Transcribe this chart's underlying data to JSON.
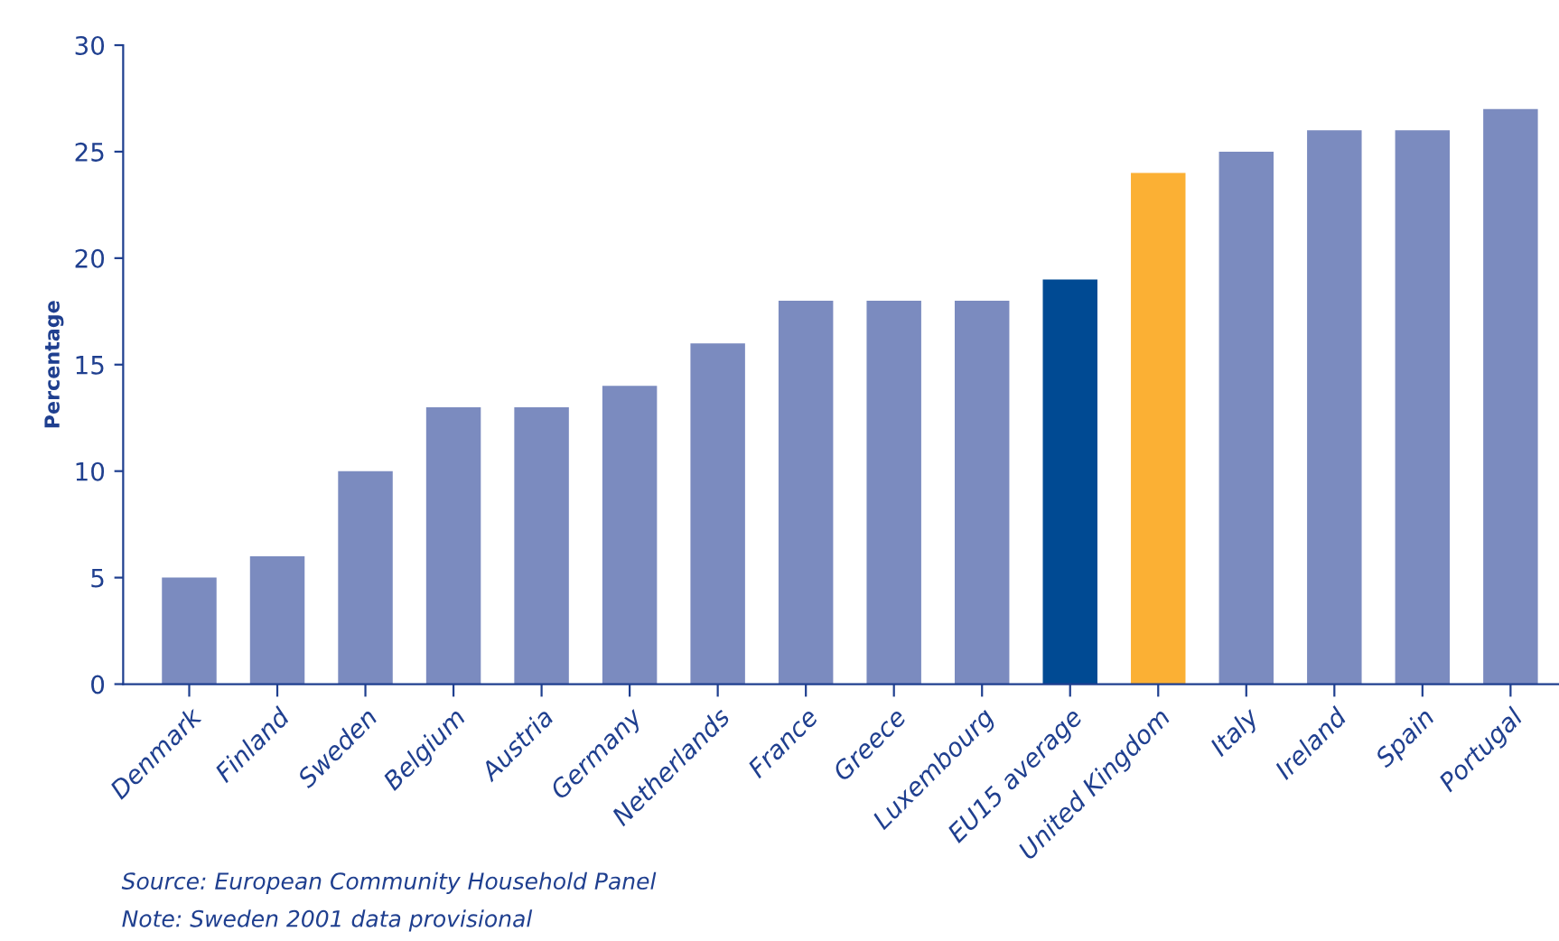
{
  "chart_data": {
    "type": "bar",
    "ylabel": "Percentage",
    "categories": [
      "Denmark",
      "Finland",
      "Sweden",
      "Belgium",
      "Austria",
      "Germany",
      "Netherlands",
      "France",
      "Greece",
      "Luxembourg",
      "EU15 average",
      "United Kingdom",
      "Italy",
      "Ireland",
      "Spain",
      "Portugal"
    ],
    "values": [
      5,
      6,
      10,
      13,
      13,
      14,
      16,
      18,
      18,
      18,
      19,
      24,
      25,
      26,
      26,
      27
    ],
    "colors": [
      "#7b8bbf",
      "#7b8bbf",
      "#7b8bbf",
      "#7b8bbf",
      "#7b8bbf",
      "#7b8bbf",
      "#7b8bbf",
      "#7b8bbf",
      "#7b8bbf",
      "#7b8bbf",
      "#004a93",
      "#fbb034",
      "#7b8bbf",
      "#7b8bbf",
      "#7b8bbf",
      "#7b8bbf"
    ],
    "ylim": [
      0,
      30
    ],
    "yticks": [
      0,
      5,
      10,
      15,
      20,
      25,
      30
    ],
    "grid": false,
    "legend": false,
    "annotations": [
      "Source: European Community Household Panel",
      "Note: Sweden 2001 data provisional"
    ]
  }
}
